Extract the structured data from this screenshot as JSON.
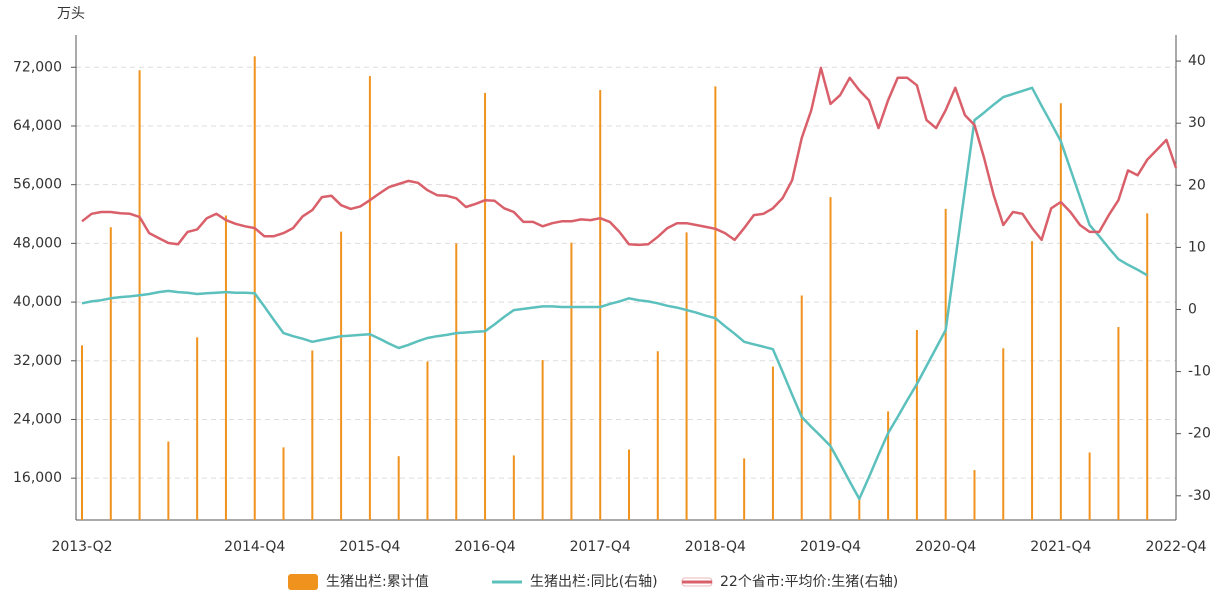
{
  "chart_data": {
    "type": "bar",
    "y_unit": "万头",
    "categories": [
      "2013-Q2",
      null,
      null,
      null,
      null,
      null,
      null,
      null,
      null,
      null,
      null,
      null,
      null,
      null,
      null,
      null,
      null,
      null,
      "2014-Q4",
      null,
      null,
      null,
      null,
      null,
      null,
      null,
      null,
      null,
      null,
      null,
      "2015-Q4",
      null,
      null,
      null,
      null,
      null,
      null,
      null,
      null,
      null,
      null,
      null,
      "2016-Q4",
      null,
      null,
      null,
      null,
      null,
      null,
      null,
      null,
      null,
      null,
      null,
      "2017-Q4",
      null,
      null,
      null,
      null,
      null,
      null,
      null,
      null,
      null,
      null,
      null,
      "2018-Q4",
      null,
      null,
      null,
      null,
      null,
      null,
      null,
      null,
      null,
      null,
      null,
      "2019-Q4",
      null,
      null,
      null,
      null,
      null,
      null,
      null,
      null,
      null,
      null,
      null,
      "2020-Q4",
      null,
      null,
      null,
      null,
      null,
      null,
      null,
      null,
      null,
      null,
      null,
      "2021-Q4",
      null,
      null,
      null,
      null,
      null,
      null,
      null,
      null,
      null,
      null,
      null,
      "2022-Q4"
    ],
    "series": [
      {
        "name": "生猪出栏:累计值",
        "type": "bar",
        "color": "#f0921e",
        "values": [
          34100,
          null,
          null,
          50200,
          null,
          null,
          71600,
          null,
          null,
          21000,
          null,
          null,
          35200,
          null,
          null,
          51800,
          null,
          null,
          73500,
          null,
          null,
          20200,
          null,
          null,
          33400,
          null,
          null,
          49600,
          null,
          null,
          70800,
          null,
          null,
          19000,
          null,
          null,
          31900,
          null,
          null,
          48000,
          null,
          null,
          68500,
          null,
          null,
          19100,
          null,
          null,
          32100,
          null,
          null,
          48100,
          null,
          null,
          68900,
          null,
          null,
          19900,
          null,
          null,
          33300,
          null,
          null,
          49500,
          null,
          null,
          69400,
          null,
          null,
          18700,
          null,
          null,
          31200,
          null,
          null,
          40900,
          null,
          null,
          54300,
          null,
          null,
          13400,
          null,
          null,
          25100,
          null,
          null,
          36200,
          null,
          null,
          52700,
          null,
          null,
          17100,
          null,
          null,
          33700,
          null,
          null,
          48300,
          null,
          null,
          67100,
          null,
          null,
          19500,
          null,
          null,
          36600,
          null,
          null,
          52100,
          null,
          null,
          null
        ]
      },
      {
        "name": "生猪出栏:同比(右轴)",
        "type": "line",
        "axis": "y2",
        "color": "#5cc0bd",
        "values": [
          1.0,
          1.3,
          1.5,
          1.8,
          2.0,
          2.1,
          2.3,
          2.5,
          2.8,
          3.0,
          2.8,
          2.7,
          2.5,
          2.6,
          2.7,
          2.8,
          2.7,
          2.7,
          2.6,
          0.5,
          -1.7,
          -3.8,
          -4.3,
          -4.7,
          -5.2,
          -4.9,
          -4.6,
          -4.3,
          -4.2,
          -4.1,
          -4.0,
          -4.7,
          -5.5,
          -6.2,
          -5.7,
          -5.1,
          -4.6,
          -4.3,
          -4.1,
          -3.8,
          -3.7,
          -3.6,
          -3.5,
          -2.4,
          -1.2,
          -0.1,
          0.1,
          0.3,
          0.5,
          0.5,
          0.4,
          0.4,
          0.4,
          0.4,
          0.4,
          0.9,
          1.3,
          1.8,
          1.5,
          1.3,
          1.0,
          0.6,
          0.3,
          -0.1,
          -0.5,
          -1.0,
          -1.4,
          -2.7,
          -3.9,
          -5.2,
          -5.6,
          -6.0,
          -6.4,
          -10.0,
          -13.7,
          -17.3,
          -18.9,
          -20.4,
          -22.0,
          -24.8,
          -27.7,
          -30.5,
          -27.0,
          -23.4,
          -19.9,
          -17.3,
          -14.6,
          -12.0,
          -9.1,
          -6.2,
          -3.3,
          8.0,
          19.2,
          30.5,
          31.7,
          33.0,
          34.2,
          34.7,
          35.2,
          35.7,
          32.8,
          30.0,
          27.1,
          22.6,
          18.1,
          13.6,
          11.8,
          9.9,
          8.1,
          7.2,
          6.4,
          5.5,
          null,
          null,
          null
        ]
      },
      {
        "name": "22个省市:平均价:生猪(右轴)",
        "type": "line",
        "axis": "y2",
        "color": "#d9606a",
        "values": [
          14.2,
          15.4,
          15.7,
          15.7,
          15.5,
          15.4,
          14.9,
          12.3,
          11.5,
          10.7,
          10.5,
          12.5,
          12.9,
          14.7,
          15.4,
          14.4,
          13.8,
          13.4,
          13.1,
          11.8,
          11.8,
          12.3,
          13.1,
          15.0,
          16.0,
          18.1,
          18.3,
          16.8,
          16.2,
          16.6,
          17.6,
          18.7,
          19.7,
          20.2,
          20.7,
          20.4,
          19.2,
          18.4,
          18.3,
          17.9,
          16.5,
          17.0,
          17.6,
          17.5,
          16.3,
          15.7,
          14.1,
          14.1,
          13.4,
          13.9,
          14.2,
          14.2,
          14.5,
          14.4,
          14.7,
          14.1,
          12.5,
          10.5,
          10.4,
          10.5,
          11.7,
          13.1,
          13.9,
          13.9,
          13.6,
          13.3,
          13.0,
          12.3,
          11.2,
          13.1,
          15.2,
          15.4,
          16.3,
          17.9,
          20.8,
          27.6,
          32.1,
          38.9,
          33.1,
          34.5,
          37.3,
          35.3,
          33.7,
          29.2,
          33.7,
          37.3,
          37.3,
          36.1,
          30.5,
          29.2,
          32.1,
          35.7,
          31.3,
          29.7,
          24.4,
          18.4,
          13.6,
          15.7,
          15.4,
          13.1,
          11.2,
          16.3,
          17.3,
          15.7,
          13.6,
          12.5,
          12.5,
          15.2,
          17.6,
          22.4,
          21.6,
          24.1,
          25.7,
          27.3,
          22.8
        ]
      }
    ],
    "ylim": [
      10300,
      76400
    ],
    "yticks": [
      {
        "value": 16000,
        "label": "16,000"
      },
      {
        "value": 24000,
        "label": "24,000"
      },
      {
        "value": 32000,
        "label": "32,000"
      },
      {
        "value": 40000,
        "label": "40,000"
      },
      {
        "value": 48000,
        "label": "48,000"
      },
      {
        "value": 56000,
        "label": "56,000"
      },
      {
        "value": 64000,
        "label": "64,000"
      },
      {
        "value": 72000,
        "label": "72,000"
      }
    ],
    "y2lim": [
      -33.9,
      44.2
    ],
    "y2ticks": [
      -30,
      -20,
      -10,
      0,
      10,
      20,
      30,
      40
    ],
    "grid": true,
    "legend": "bottom"
  }
}
